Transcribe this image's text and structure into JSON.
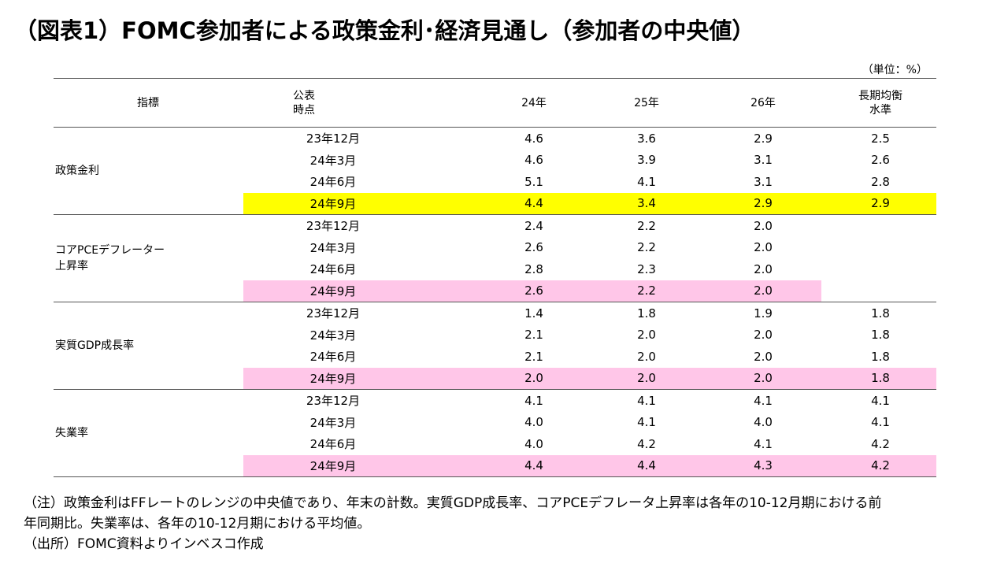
{
  "title": "（図表1）FOMC参加者による政策金利･経済見通し（参加者の中央値）",
  "unit": "（単位：%）",
  "headers": {
    "indicator": "指標",
    "published_line1": "公表",
    "published_line2": "時点",
    "y24": "24年",
    "y25": "25年",
    "y26": "26年",
    "longrun_line1": "長期均衡",
    "longrun_line2": "水準"
  },
  "colors": {
    "highlight_yellow": "#ffff00",
    "highlight_pink": "#ffc6e8"
  },
  "groups": [
    {
      "label_line1": "政策金利",
      "label_line2": "",
      "highlight": "yellow",
      "highlight_cols": 4,
      "rows": [
        {
          "date": "23年12月",
          "v24": "4.6",
          "v25": "3.6",
          "v26": "2.9",
          "lr": "2.5"
        },
        {
          "date": "24年3月",
          "v24": "4.6",
          "v25": "3.9",
          "v26": "3.1",
          "lr": "2.6"
        },
        {
          "date": "24年6月",
          "v24": "5.1",
          "v25": "4.1",
          "v26": "3.1",
          "lr": "2.8"
        },
        {
          "date": "24年9月",
          "v24": "4.4",
          "v25": "3.4",
          "v26": "2.9",
          "lr": "2.9"
        }
      ]
    },
    {
      "label_line1": "コアPCEデフレーター",
      "label_line2": "上昇率",
      "highlight": "pink",
      "highlight_cols": 3,
      "rows": [
        {
          "date": "23年12月",
          "v24": "2.4",
          "v25": "2.2",
          "v26": "2.0",
          "lr": ""
        },
        {
          "date": "24年3月",
          "v24": "2.6",
          "v25": "2.2",
          "v26": "2.0",
          "lr": ""
        },
        {
          "date": "24年6月",
          "v24": "2.8",
          "v25": "2.3",
          "v26": "2.0",
          "lr": ""
        },
        {
          "date": "24年9月",
          "v24": "2.6",
          "v25": "2.2",
          "v26": "2.0",
          "lr": ""
        }
      ]
    },
    {
      "label_line1": "実質GDP成長率",
      "label_line2": "",
      "highlight": "pink",
      "highlight_cols": 4,
      "rows": [
        {
          "date": "23年12月",
          "v24": "1.4",
          "v25": "1.8",
          "v26": "1.9",
          "lr": "1.8"
        },
        {
          "date": "24年3月",
          "v24": "2.1",
          "v25": "2.0",
          "v26": "2.0",
          "lr": "1.8"
        },
        {
          "date": "24年6月",
          "v24": "2.1",
          "v25": "2.0",
          "v26": "2.0",
          "lr": "1.8"
        },
        {
          "date": "24年9月",
          "v24": "2.0",
          "v25": "2.0",
          "v26": "2.0",
          "lr": "1.8"
        }
      ]
    },
    {
      "label_line1": "失業率",
      "label_line2": "",
      "highlight": "pink",
      "highlight_cols": 4,
      "rows": [
        {
          "date": "23年12月",
          "v24": "4.1",
          "v25": "4.1",
          "v26": "4.1",
          "lr": "4.1"
        },
        {
          "date": "24年3月",
          "v24": "4.0",
          "v25": "4.1",
          "v26": "4.0",
          "lr": "4.1"
        },
        {
          "date": "24年6月",
          "v24": "4.0",
          "v25": "4.2",
          "v26": "4.1",
          "lr": "4.2"
        },
        {
          "date": "24年9月",
          "v24": "4.4",
          "v25": "4.4",
          "v26": "4.3",
          "lr": "4.2"
        }
      ]
    }
  ],
  "notes": {
    "line1": "（注）政策金利はFFレートのレンジの中央値であり、年末の計数。実質GDP成長率、コアPCEデフレータ上昇率は各年の10-12月期における前",
    "line2": "年同期比。失業率は、各年の10-12月期における平均値。",
    "line3": "（出所）FOMC資料よりインベスコ作成"
  }
}
